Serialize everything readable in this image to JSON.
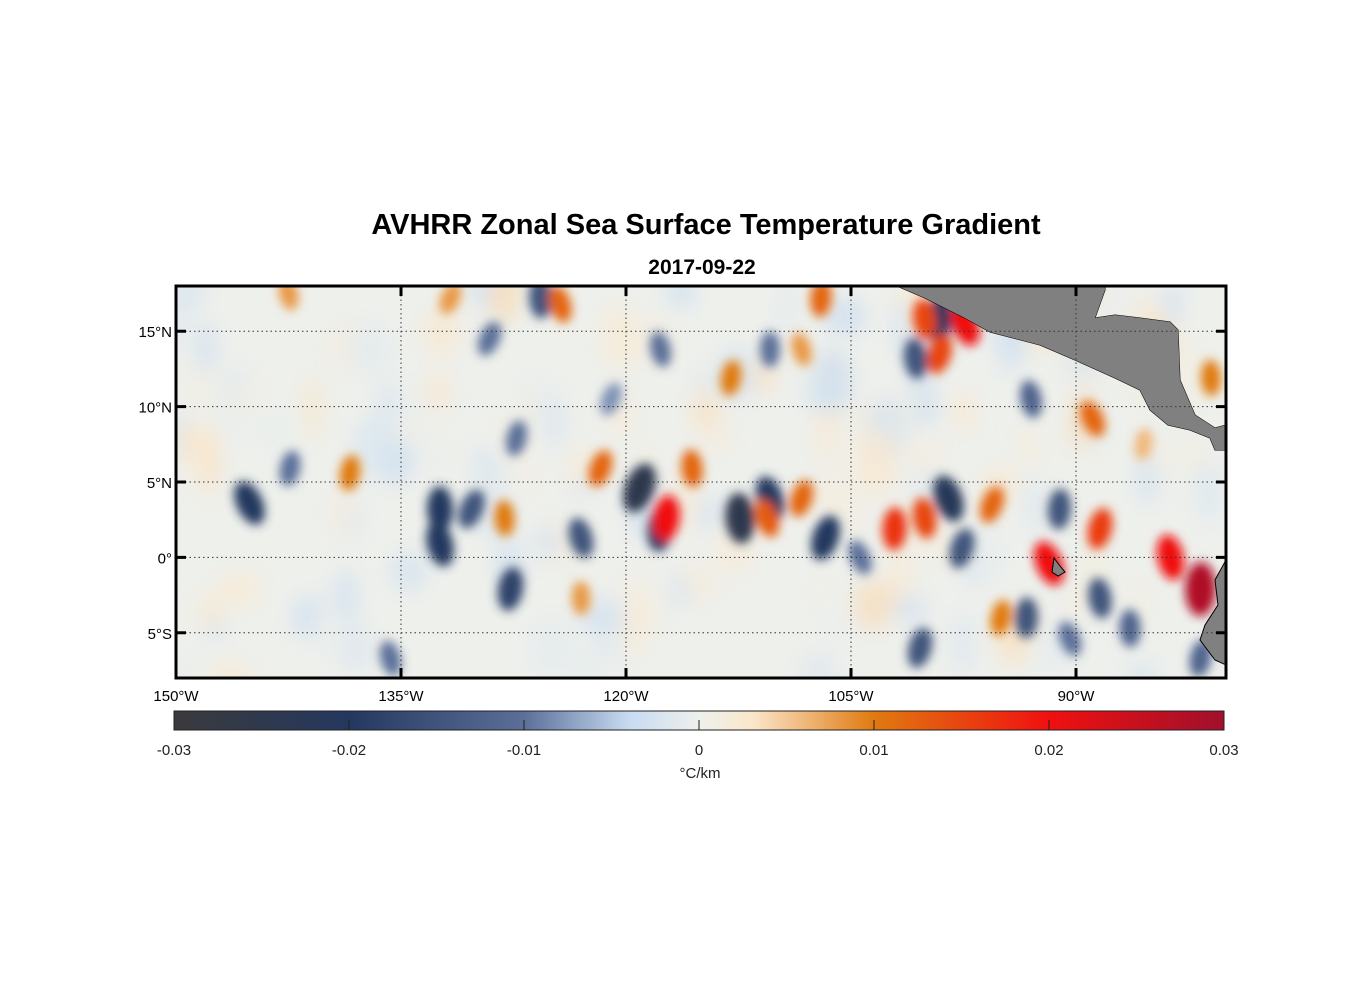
{
  "chart_data": {
    "type": "heatmap",
    "title": "AVHRR Zonal Sea Surface Temperature Gradient",
    "subtitle": "2017-09-22",
    "xlim": [
      -150,
      -80
    ],
    "ylim": [
      -8,
      18
    ],
    "grid": true,
    "x_ticks": [
      {
        "value": -150,
        "label": "150°W"
      },
      {
        "value": -135,
        "label": "135°W"
      },
      {
        "value": -120,
        "label": "120°W"
      },
      {
        "value": -105,
        "label": "105°W"
      },
      {
        "value": -90,
        "label": "90°W"
      }
    ],
    "y_ticks": [
      {
        "value": 15,
        "label": "15°N"
      },
      {
        "value": 10,
        "label": "10°N"
      },
      {
        "value": 5,
        "label": "5°N"
      },
      {
        "value": 0,
        "label": "0°"
      },
      {
        "value": -5,
        "label": "5°S"
      }
    ],
    "colorbar": {
      "label": "°C/km",
      "range": [
        -0.03,
        0.03
      ],
      "ticks": [
        {
          "value": -0.03,
          "label": "-0.03"
        },
        {
          "value": -0.02,
          "label": "-0.02"
        },
        {
          "value": -0.01,
          "label": "-0.01"
        },
        {
          "value": 0,
          "label": "0"
        },
        {
          "value": 0.01,
          "label": "0.01"
        },
        {
          "value": 0.02,
          "label": "0.02"
        },
        {
          "value": 0.03,
          "label": "0.03"
        }
      ],
      "colormap": [
        {
          "v": -0.03,
          "c": "#3a3a3c"
        },
        {
          "v": -0.02,
          "c": "#24385f"
        },
        {
          "v": -0.01,
          "c": "#5b6f99"
        },
        {
          "v": -0.004,
          "c": "#c7dbf2"
        },
        {
          "v": 0,
          "c": "#eef0ec"
        },
        {
          "v": 0.003,
          "c": "#fbe7cc"
        },
        {
          "v": 0.01,
          "c": "#e07a10"
        },
        {
          "v": 0.02,
          "c": "#f01010"
        },
        {
          "v": 0.03,
          "c": "#a0102c"
        }
      ]
    },
    "land_color": "#808080",
    "features": [
      [
        -145.1,
        3.6,
        -0.02
      ],
      [
        -142.4,
        5.9,
        -0.01
      ],
      [
        -132.4,
        3.2,
        -0.02
      ],
      [
        -132.4,
        0.9,
        -0.02
      ],
      [
        -130.3,
        3.2,
        -0.015
      ],
      [
        -127.7,
        -2.1,
        -0.018
      ],
      [
        -125.7,
        17.2,
        -0.015
      ],
      [
        -123.0,
        1.3,
        -0.015
      ],
      [
        -119.1,
        4.6,
        -0.025
      ],
      [
        -117.7,
        1.9,
        -0.02
      ],
      [
        -112.4,
        2.6,
        -0.025
      ],
      [
        -110.4,
        3.9,
        -0.02
      ],
      [
        -106.7,
        1.3,
        -0.02
      ],
      [
        -99.1,
        15.8,
        -0.02
      ],
      [
        -100.7,
        13.2,
        -0.015
      ],
      [
        -98.5,
        3.9,
        -0.022
      ],
      [
        -97.6,
        0.6,
        -0.015
      ],
      [
        -91.1,
        3.2,
        -0.015
      ],
      [
        -88.4,
        -2.7,
        -0.015
      ],
      [
        -90.4,
        -5.4,
        -0.01
      ],
      [
        -100.4,
        -6.0,
        -0.015
      ],
      [
        -93.3,
        -4.0,
        -0.015
      ],
      [
        -93.0,
        10.5,
        -0.012
      ],
      [
        -104.4,
        0.0,
        -0.01
      ],
      [
        -127.3,
        7.9,
        -0.01
      ],
      [
        -110.4,
        13.8,
        -0.01
      ],
      [
        -117.7,
        13.8,
        -0.01
      ],
      [
        -129.1,
        14.5,
        -0.01
      ],
      [
        -81.7,
        -6.7,
        -0.012
      ],
      [
        -86.4,
        -4.7,
        -0.012
      ],
      [
        -135.7,
        -6.7,
        -0.01
      ],
      [
        -121.0,
        10.5,
        -0.008
      ],
      [
        -138.4,
        5.6,
        0.01
      ],
      [
        -128.1,
        2.6,
        0.01
      ],
      [
        -124.4,
        16.8,
        0.012
      ],
      [
        -121.7,
        5.9,
        0.012
      ],
      [
        -117.3,
        2.6,
        0.02
      ],
      [
        -115.6,
        5.9,
        0.012
      ],
      [
        -110.6,
        2.6,
        0.013
      ],
      [
        -108.3,
        3.9,
        0.012
      ],
      [
        -107.0,
        17.2,
        0.012
      ],
      [
        -100.1,
        15.8,
        0.015
      ],
      [
        -97.4,
        15.5,
        0.02
      ],
      [
        -99.1,
        13.5,
        0.015
      ],
      [
        -102.1,
        1.9,
        0.017
      ],
      [
        -100.1,
        2.6,
        0.015
      ],
      [
        -91.8,
        -0.4,
        0.02
      ],
      [
        -88.4,
        1.9,
        0.016
      ],
      [
        -81.7,
        -2.1,
        0.028
      ],
      [
        -83.7,
        0.0,
        0.02
      ],
      [
        -88.9,
        9.2,
        0.012
      ],
      [
        -95.0,
        -4.0,
        0.01
      ],
      [
        -123.0,
        -2.7,
        0.008
      ],
      [
        -142.5,
        17.5,
        0.008
      ],
      [
        -131.7,
        17.2,
        0.008
      ],
      [
        -113.0,
        11.9,
        0.01
      ],
      [
        -81.0,
        11.9,
        0.01
      ],
      [
        -108.3,
        13.8,
        0.008
      ],
      [
        -95.6,
        3.5,
        0.012
      ],
      [
        -85.5,
        7.5,
        0.006
      ]
    ]
  }
}
